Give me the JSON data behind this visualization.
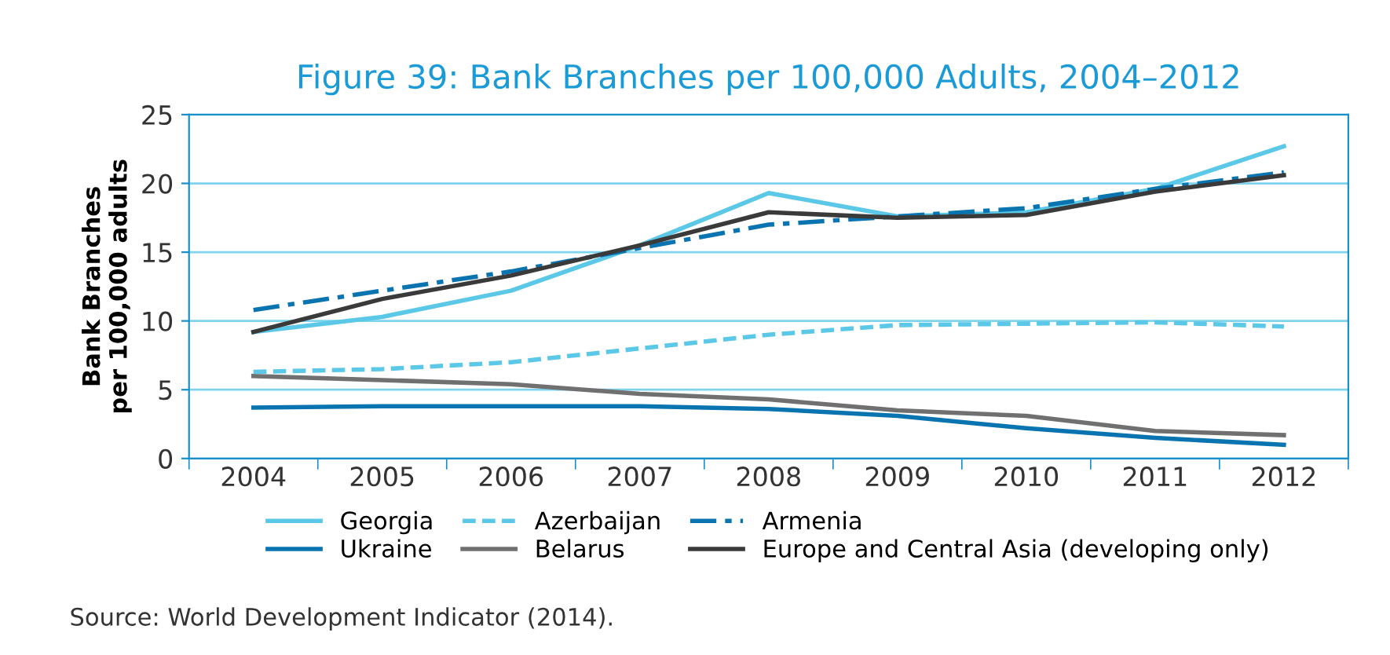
{
  "chart_data": {
    "type": "line",
    "title": "Figure 39: Bank Branches per 100,000 Adults, 2004–2012",
    "ylabel": "Bank Branches\nper 100,000 adults",
    "categories": [
      "2004",
      "2005",
      "2006",
      "2007",
      "2008",
      "2009",
      "2010",
      "2011",
      "2012"
    ],
    "series": [
      {
        "name": "Georgia",
        "color": "#5bc8e8",
        "line_style": "solid",
        "values": [
          9.2,
          10.3,
          12.2,
          15.5,
          19.3,
          17.6,
          17.9,
          19.6,
          22.7
        ]
      },
      {
        "name": "Belarus",
        "color": "#707070",
        "line_style": "solid",
        "values": [
          6.0,
          5.7,
          5.4,
          4.7,
          4.3,
          3.5,
          3.1,
          2.0,
          1.7
        ]
      },
      {
        "name": "Ukraine",
        "color": "#0a74b0",
        "line_style": "solid",
        "values": [
          3.7,
          3.8,
          3.8,
          3.8,
          3.6,
          3.1,
          2.2,
          1.5,
          1.0
        ]
      },
      {
        "name": "Armenia",
        "color": "#0a74b0",
        "line_style": "dashdot",
        "values": [
          10.8,
          12.2,
          13.6,
          15.3,
          17.0,
          17.6,
          18.2,
          19.6,
          20.8
        ]
      },
      {
        "name": "Azerbaijan",
        "color": "#5bc8e8",
        "line_style": "dashed",
        "values": [
          6.3,
          6.5,
          7.0,
          8.0,
          9.0,
          9.7,
          9.8,
          9.9,
          9.6
        ]
      },
      {
        "name": "Europe and Central Asia (developing only)",
        "color": "#3a3a3a",
        "line_style": "solid",
        "values": [
          9.2,
          11.6,
          13.3,
          15.5,
          17.9,
          17.5,
          17.7,
          19.4,
          20.6
        ]
      }
    ],
    "ylim": [
      0,
      25
    ],
    "yticks": [
      0,
      5,
      10,
      15,
      20,
      25
    ],
    "grid": "y",
    "legend": "bottom",
    "marker": "none",
    "annotations": [
      "Source: World Development Indicator (2014)."
    ]
  }
}
